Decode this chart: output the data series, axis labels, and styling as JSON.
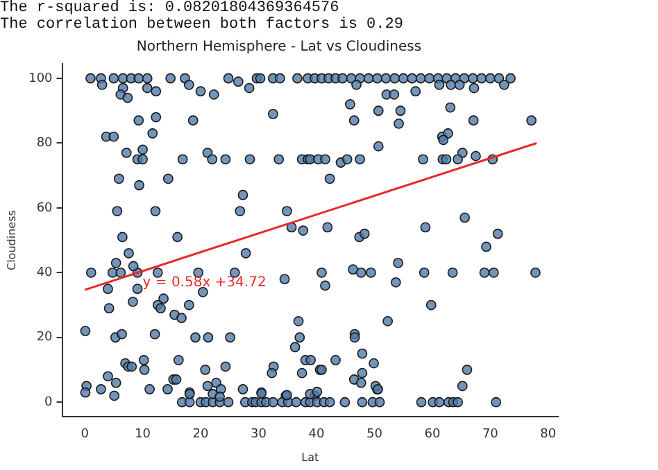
{
  "chart_data": {
    "type": "scatter",
    "title": "Northern Hemisphere - Lat vs Cloudiness",
    "xlabel": "Lat",
    "ylabel": "Cloudiness",
    "annotations": [
      "The r-squared is: 0.08201804369364576",
      "The correlation between both factors is 0.29",
      {
        "text": "y = 0.58x +34.72",
        "x": 10,
        "y": 37
      }
    ],
    "xlim": [
      -3.9,
      81.7
    ],
    "ylim": [
      -4.5,
      104.5
    ],
    "xticks": [
      0,
      10,
      20,
      30,
      40,
      50,
      60,
      70,
      80
    ],
    "yticks": [
      0,
      20,
      40,
      60,
      80,
      100
    ],
    "series": [
      {
        "type": "scatter",
        "marker": "circle",
        "color": "#4f7ba7",
        "x": [
          1.0,
          2.8,
          5.0,
          6.6,
          8.0,
          9.3,
          10.8,
          14.8,
          17.3,
          24.8,
          29.7,
          30.3,
          32.5,
          33.7,
          36.7,
          38.5,
          39.7,
          40.9,
          42.1,
          43.3,
          44.5,
          46,
          47.5,
          49,
          50.5,
          52,
          53.5,
          55,
          56.5,
          58,
          59.5,
          61,
          62.5,
          64,
          65.5,
          67,
          68.5,
          70,
          71.5,
          73.5,
          3.0,
          6.6,
          10.8,
          12.3,
          18.0,
          20.0,
          22.3,
          26.5,
          28.4,
          6.2,
          7.4,
          9.3,
          12.3,
          18.7,
          32.5,
          3.7,
          5.0,
          11.7,
          7.2,
          10.0,
          9.1,
          10.0,
          16.9,
          21.2,
          22.0,
          24.3,
          28.5,
          33.5,
          37.5,
          38.5,
          38.9,
          40.3,
          41.5,
          5.9,
          14.4,
          9.4,
          42.3,
          27.3,
          5.6,
          12.2,
          26.8,
          34.9,
          35.7,
          37.7,
          41.9,
          6.5,
          16.0,
          46.9,
          61.2,
          63.2,
          64.7,
          67.2,
          72.4,
          52.1,
          53.4,
          57.1,
          45.8,
          50.7,
          54.5,
          63.1,
          46.5,
          54.2,
          67.1,
          77.1,
          61.7,
          62.7,
          61.9,
          50.7,
          65.2,
          67.5,
          44.2,
          45.3,
          47.5,
          58.4,
          61.8,
          62.4,
          64.4,
          70.4,
          65.6,
          58.8,
          47.4,
          48.3,
          71.3,
          69.3,
          7.6,
          27.8,
          1.1,
          4.8,
          6.2,
          9.1,
          12.6,
          19.6,
          25.9,
          40.9,
          5.4,
          8.4,
          4.0,
          9.1,
          20.4,
          34.5,
          41.5,
          13.6,
          8.3,
          12.6,
          13.1,
          4.2,
          18.0,
          15.5,
          16.7,
          0.1,
          5.3,
          6.4,
          12.1,
          19.1,
          21.3,
          25.1,
          36.9,
          37.1,
          36.3,
          38.1,
          39.0,
          43.3,
          7.0,
          7.5,
          8.1,
          10.2,
          10.3,
          16.2,
          32.6,
          32.3,
          37.5,
          40.6,
          4.0,
          5.4,
          20.8,
          24.3,
          0.3,
          0.1,
          2.8,
          5.1,
          11.2,
          14.3,
          15.3,
          15.8,
          21.2,
          22.7,
          23.5,
          18.1,
          27.3,
          30.5,
          34.7,
          39.7,
          16.8,
          18.1,
          20.0,
          20.9,
          22.1,
          23.3,
          24.8,
          27.7,
          28.9,
          29.5,
          30.5,
          31.3,
          32.5,
          34.1,
          35.1,
          36.5,
          38.1,
          38.9,
          40.1,
          41.3,
          42.3,
          44.9,
          47.9,
          49.7,
          50.9,
          58.1,
          60.1,
          61.2,
          62.8,
          63.6,
          64.4,
          71.0,
          18.1,
          22.1,
          23.3,
          30.5,
          34.9,
          38.9,
          40.1,
          50.5,
          46.3,
          47.7,
          49.4,
          54.1,
          53.7,
          58.6,
          63.5,
          69.0,
          70.6,
          77.8,
          59.8,
          52.3,
          46.6,
          46.6,
          47.9,
          49.9,
          66.0,
          46.5,
          47.7,
          47.9,
          50.2,
          50.6,
          65.2,
          40.9
        ],
        "values": [
          100,
          100,
          100,
          100,
          100,
          100,
          100,
          100,
          100,
          100,
          100,
          100,
          100,
          100,
          100,
          100,
          100,
          100,
          100,
          100,
          100,
          100,
          100,
          100,
          100,
          100,
          100,
          100,
          100,
          100,
          100,
          100,
          100,
          100,
          100,
          100,
          100,
          100,
          100,
          100,
          98,
          97,
          97,
          96,
          98,
          96,
          95,
          99,
          97,
          95,
          94,
          87,
          88,
          87,
          89,
          82,
          82,
          83,
          77,
          78,
          75,
          75,
          75,
          77,
          75,
          75,
          75,
          75,
          75,
          75,
          75,
          75,
          75,
          69,
          69,
          67,
          69,
          64,
          59,
          59,
          59,
          59,
          54,
          53,
          54,
          51,
          51,
          98,
          98,
          98,
          98,
          97,
          98,
          95,
          95,
          96,
          92,
          90,
          90,
          91,
          87,
          86,
          87,
          87,
          82,
          83,
          81,
          79,
          77,
          76,
          74,
          75,
          75,
          75,
          75,
          75,
          75,
          75,
          57,
          54,
          51,
          52,
          52,
          48,
          46,
          46,
          40,
          40,
          40,
          40,
          40,
          40,
          40,
          40,
          43,
          42,
          35,
          35,
          34,
          38,
          36,
          32,
          31,
          30,
          29,
          29,
          30,
          27,
          26,
          22,
          20,
          21,
          21,
          20,
          20,
          20,
          25,
          20,
          17,
          13,
          13,
          13,
          12,
          11,
          11,
          13,
          10,
          13,
          11,
          9,
          9,
          10,
          8,
          6,
          10,
          11,
          5,
          3,
          4,
          2,
          4,
          4,
          7,
          7,
          5,
          6,
          4,
          3,
          4,
          3,
          2,
          2,
          0,
          0,
          0,
          0,
          0,
          0,
          0,
          0,
          0,
          0,
          0,
          0,
          0,
          0,
          0,
          0,
          0,
          0,
          0,
          0,
          0,
          0,
          0,
          0,
          0,
          0,
          0,
          0,
          0,
          0,
          0,
          0,
          2.5,
          2.5,
          1.7,
          2.7,
          2.2,
          2.5,
          3.2,
          3.9,
          41,
          40,
          40,
          43,
          37,
          40,
          40,
          40,
          40,
          40,
          30,
          25,
          21,
          20,
          15,
          12,
          10,
          7,
          6,
          9,
          5,
          4,
          5,
          10
        ]
      },
      {
        "type": "line",
        "marker": "none",
        "color": "#e8282a",
        "x": [
          0,
          78
        ],
        "values": [
          34.7,
          80.0
        ]
      }
    ]
  }
}
